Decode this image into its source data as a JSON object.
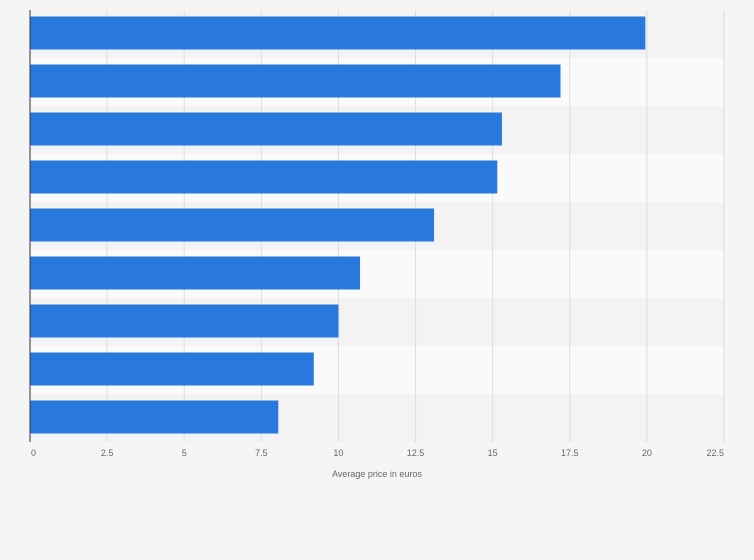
{
  "chart_data": {
    "type": "bar",
    "orientation": "horizontal",
    "title": "",
    "xlabel": "Average price in euros",
    "ylabel": "",
    "categories": [
      "",
      "",
      "",
      "",
      "",
      "",
      "",
      "",
      ""
    ],
    "values": [
      19.95,
      17.2,
      15.3,
      15.15,
      13.1,
      10.7,
      10.0,
      9.2,
      8.05
    ],
    "xlim": [
      0,
      22.5
    ],
    "ticks": [
      0,
      2.5,
      5,
      7.5,
      10,
      12.5,
      15,
      17.5,
      20,
      22.5
    ],
    "tick_labels": [
      "0",
      "2.5",
      "5",
      "7.5",
      "10",
      "12.5",
      "15",
      "17.5",
      "20",
      "22.5"
    ],
    "grid": true,
    "legend": "none",
    "colors": {
      "bar": "#2878de",
      "band_light": "#fafafa",
      "band_dark": "#f3f3f3",
      "grid": "#dddddd",
      "axis": "#333333",
      "text": "#666666"
    }
  }
}
